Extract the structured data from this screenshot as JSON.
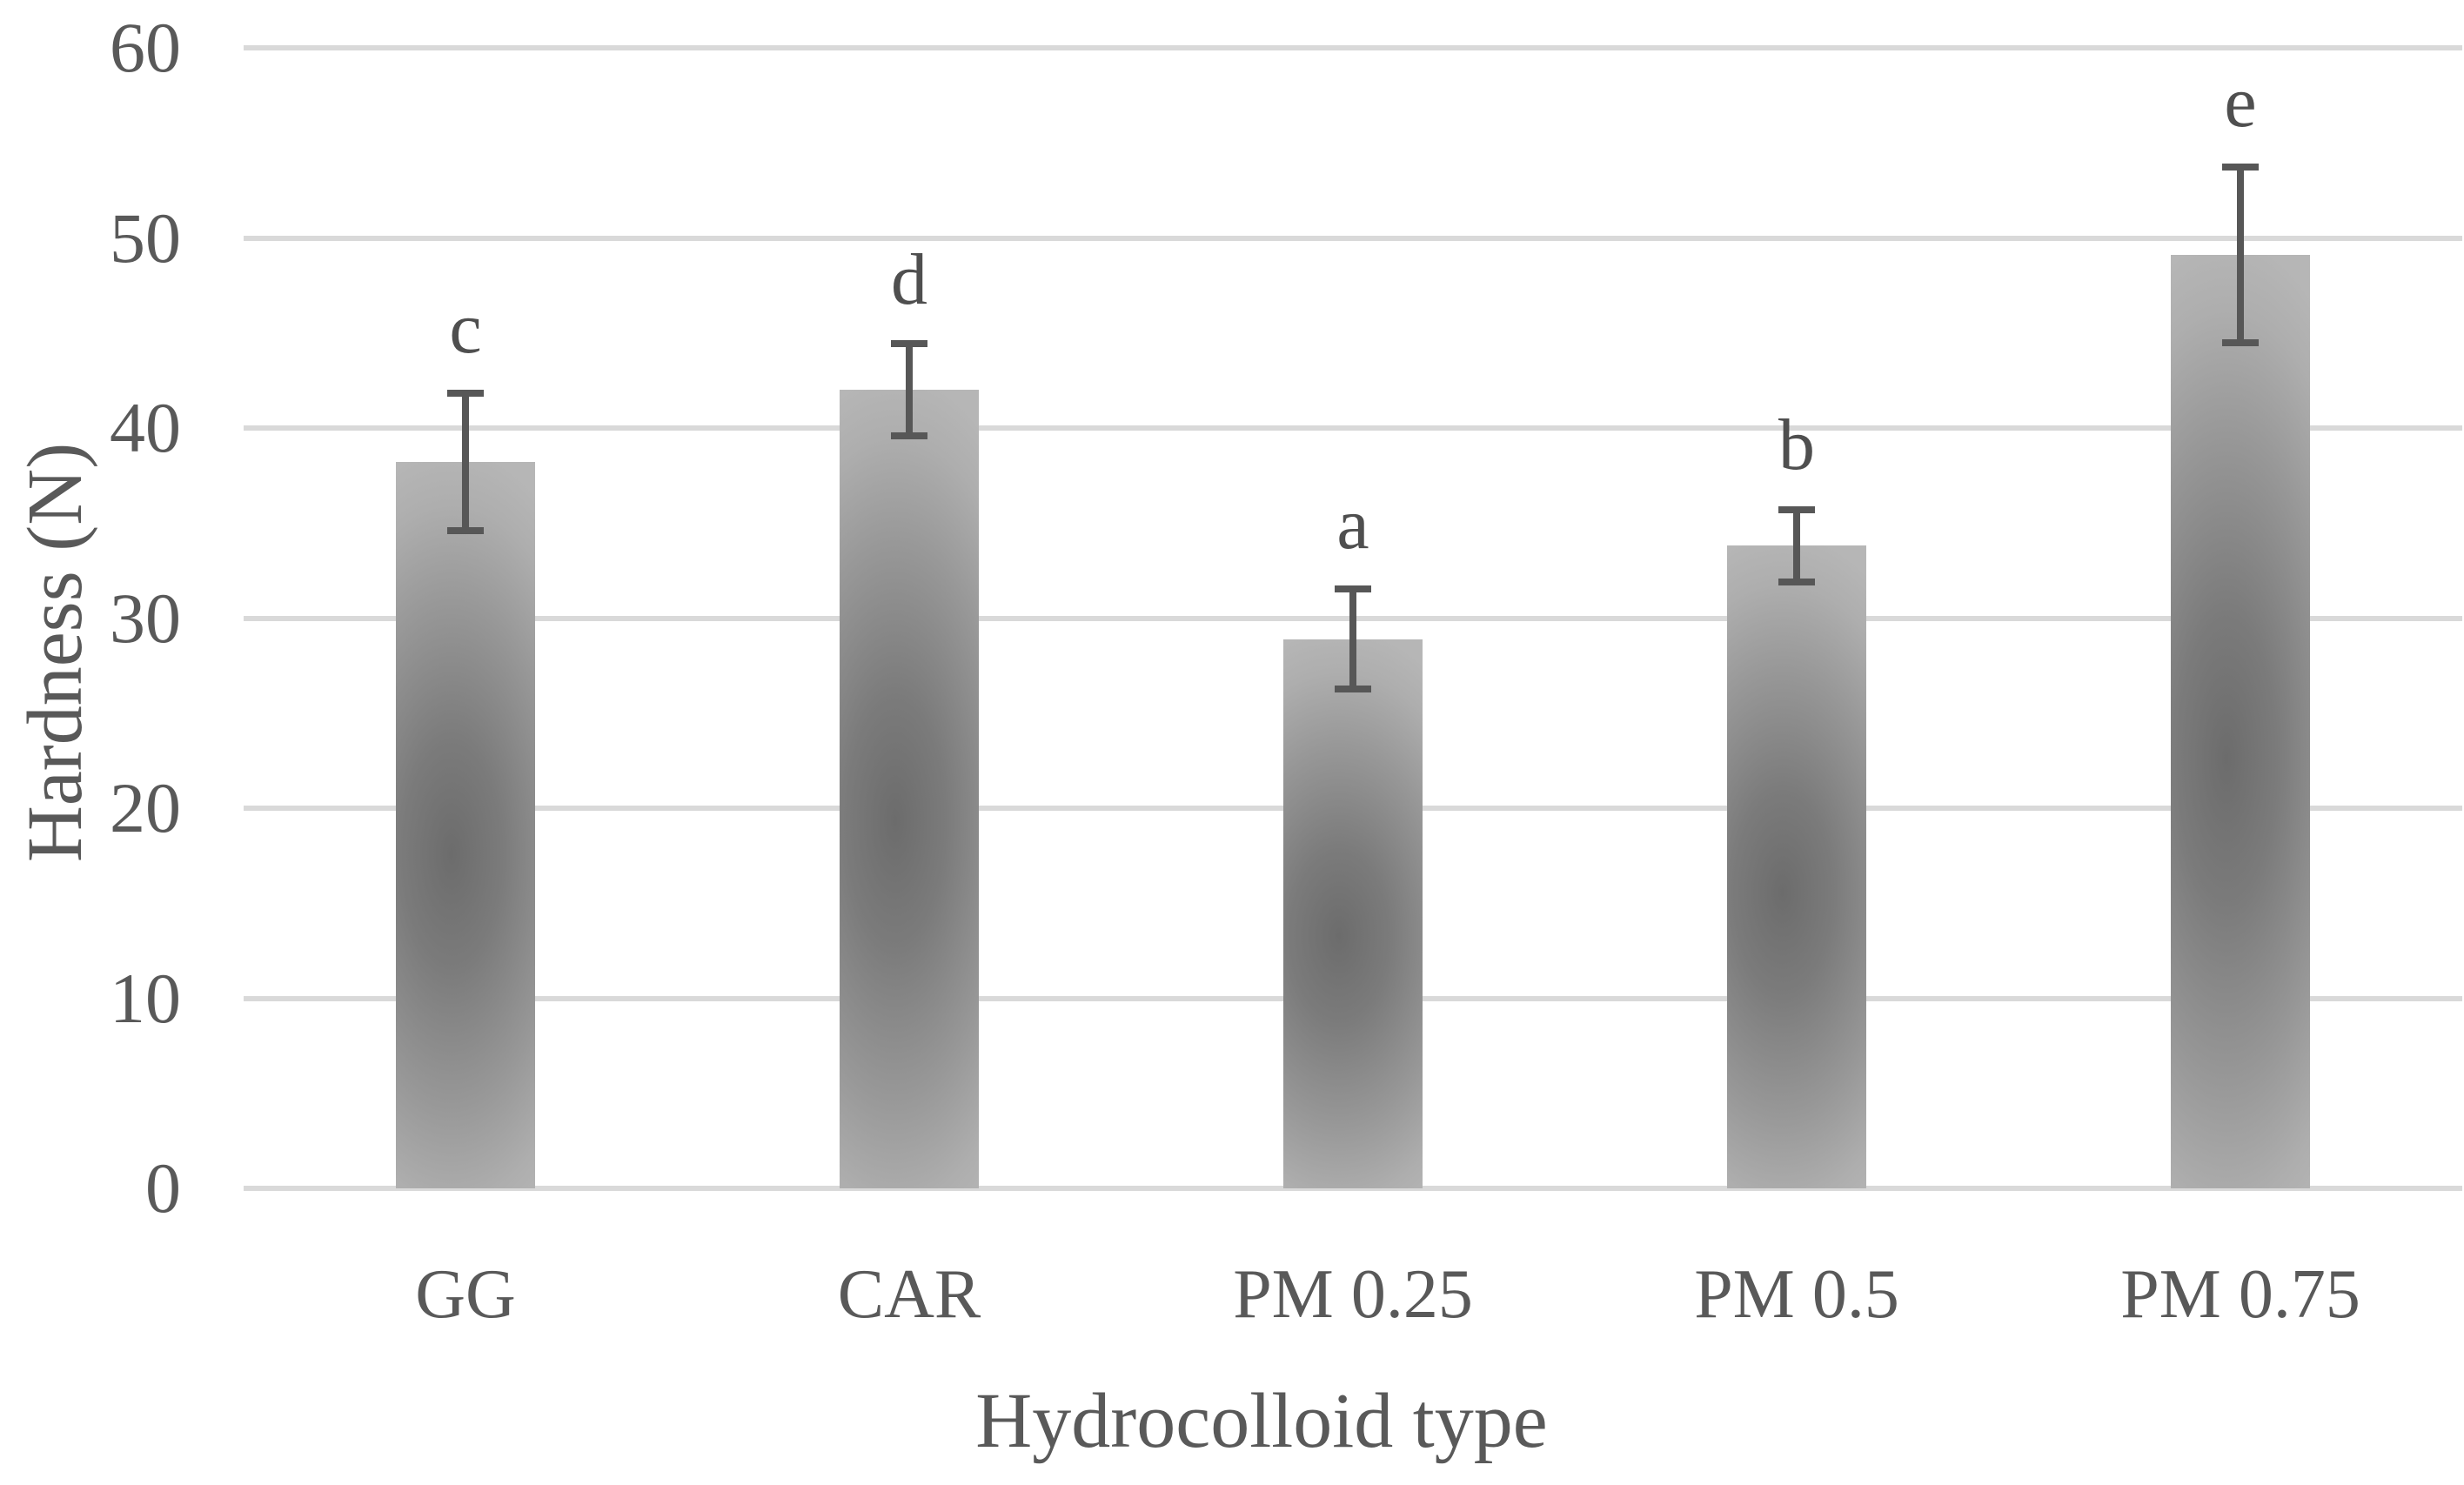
{
  "chart_data": {
    "type": "bar",
    "title": "",
    "xlabel": "Hydrocolloid type",
    "ylabel": "Hardness (N)",
    "categories": [
      "GG",
      "CAR",
      "PM 0.25",
      "PM 0.5",
      "PM 0.75"
    ],
    "values": [
      38.2,
      42.0,
      28.9,
      33.8,
      49.1
    ],
    "error_bars": [
      3.8,
      2.6,
      2.8,
      2.1,
      4.8
    ],
    "significance_letters": [
      "c",
      "d",
      "a",
      "b",
      "e"
    ],
    "yticks": [
      0,
      10,
      20,
      30,
      40,
      50,
      60
    ],
    "ylim": [
      0,
      60
    ],
    "grid": "horizontal-only",
    "legend": "none",
    "colors": {
      "bar_edge": "#b6b6b6",
      "bar_center": "#6c6c6c",
      "gridline": "#d9d9d9",
      "error_bar": "#575757",
      "text": "#595959"
    }
  }
}
